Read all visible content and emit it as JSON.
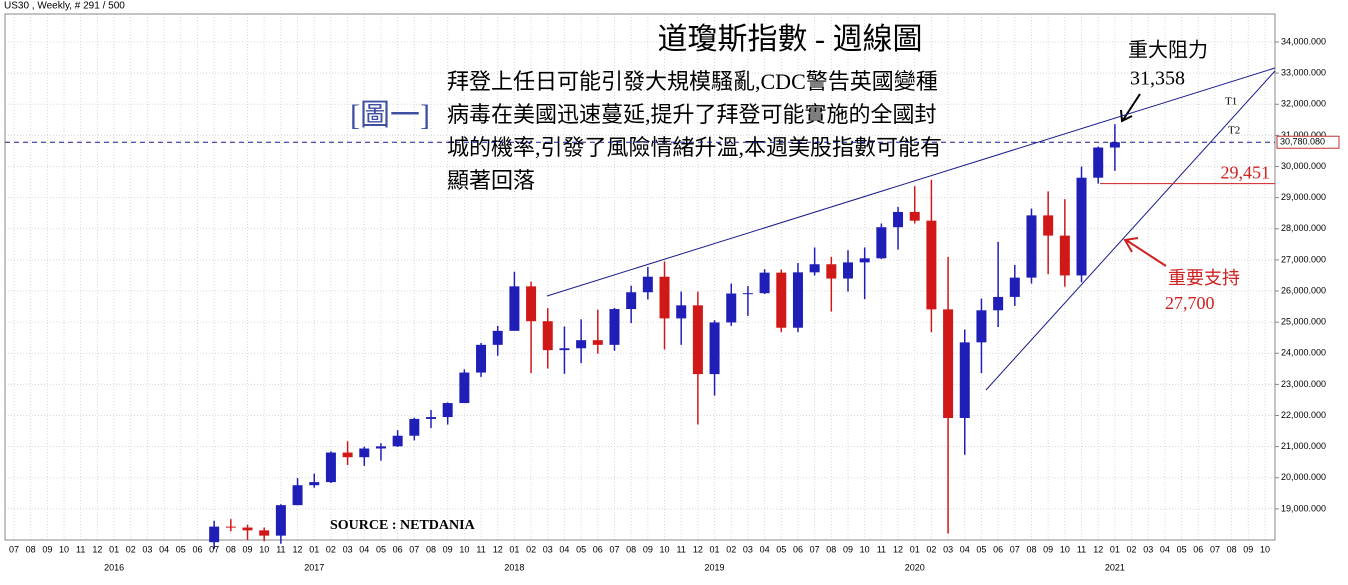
{
  "chart_data": {
    "type": "candlestick",
    "header": "US30 , Weekly, # 291 / 500",
    "title": "道瓊斯指數 - 週線圖",
    "figure_label": "[圖一]",
    "annotation_lines": [
      "拜登上任日可能引發大規模騷亂,CDC警告英國變種",
      "病毒在美國迅速蔓延,提升了拜登可能實施的全國封",
      "城的機率,引發了風險情緒升溫,本週美股指數可能有",
      "顯著回落"
    ],
    "resistance": {
      "title": "重大阻力",
      "value": 31358,
      "label": "31,358"
    },
    "support": {
      "title": "重要支持",
      "value": 27700,
      "label": "27,700"
    },
    "level": {
      "value": 29451,
      "label": "29,451",
      "color": "#d02020"
    },
    "last_price": {
      "value": 30780.08,
      "label": "30,780.080"
    },
    "trendline_names": [
      "T1",
      "T2"
    ],
    "source": "SOURCE : NETDANIA",
    "categories": [
      "07",
      "08",
      "09",
      "10",
      "11",
      "12",
      "01",
      "02",
      "03",
      "04",
      "05",
      "06",
      "07",
      "08",
      "09",
      "10",
      "11",
      "12",
      "01",
      "02",
      "03",
      "04",
      "05",
      "06",
      "07",
      "08",
      "09",
      "10",
      "11",
      "12",
      "01",
      "02",
      "03",
      "04",
      "05",
      "06",
      "07",
      "08",
      "09",
      "10",
      "11",
      "12",
      "01",
      "02",
      "03",
      "04",
      "05",
      "06",
      "07",
      "08",
      "09",
      "10",
      "11",
      "12",
      "01",
      "02",
      "03",
      "04",
      "05",
      "06",
      "07",
      "08",
      "09",
      "10",
      "11",
      "12",
      "01",
      "02",
      "03",
      "04",
      "05",
      "06",
      "07",
      "08",
      "09",
      "10"
    ],
    "years": [
      "2016",
      "2017",
      "2018",
      "2019",
      "2020",
      "2021"
    ],
    "open": [
      null,
      null,
      null,
      null,
      null,
      null,
      null,
      null,
      null,
      null,
      null,
      null,
      17930,
      18430,
      18400,
      18310,
      18140,
      19120,
      19760,
      19860,
      20810,
      20660,
      20940,
      21010,
      21350,
      21890,
      21950,
      22400,
      23380,
      24270,
      24720,
      26150,
      25030,
      24100,
      24160,
      24420,
      24270,
      25420,
      25960,
      26460,
      25120,
      25540,
      23330,
      24990,
      25920,
      25930,
      26590,
      24820,
      26600,
      26860,
      26400,
      26920,
      27050,
      28050,
      28540,
      28260,
      25410,
      21920,
      24350,
      25380,
      25810,
      26430,
      28430,
      27780,
      26500,
      29640,
      30610,
      null,
      null,
      null,
      null,
      null,
      null,
      null,
      null,
      null
    ],
    "high": [
      null,
      null,
      null,
      null,
      null,
      null,
      null,
      null,
      null,
      null,
      null,
      null,
      18620,
      18670,
      18490,
      18400,
      19150,
      19990,
      20130,
      20850,
      21170,
      21000,
      21110,
      21530,
      21930,
      22180,
      22420,
      23480,
      24330,
      24880,
      26620,
      26300,
      25450,
      24860,
      25090,
      25400,
      25460,
      26170,
      26770,
      26950,
      25980,
      25980,
      25060,
      26240,
      26160,
      26700,
      26690,
      26900,
      27400,
      27100,
      27310,
      27400,
      28170,
      28700,
      29370,
      29570,
      27100,
      24760,
      25760,
      27580,
      26840,
      28650,
      29200,
      28950,
      30000,
      30640,
      31360,
      null,
      null,
      null,
      null,
      null,
      null,
      null,
      null,
      null
    ],
    "low": [
      null,
      null,
      null,
      null,
      null,
      null,
      null,
      null,
      null,
      null,
      null,
      null,
      17710,
      18280,
      18000,
      17960,
      17880,
      19120,
      19680,
      19830,
      20410,
      20380,
      20550,
      20990,
      21200,
      21600,
      21710,
      22400,
      23240,
      23920,
      24720,
      23360,
      23510,
      23340,
      23680,
      23990,
      24080,
      24970,
      25730,
      24120,
      24270,
      21710,
      22640,
      24880,
      25200,
      25900,
      24680,
      24680,
      26500,
      25340,
      25980,
      25740,
      27030,
      27330,
      28170,
      24680,
      18210,
      20740,
      23360,
      24840,
      25520,
      26240,
      26540,
      26140,
      26280,
      29450,
      29860,
      null,
      null,
      null,
      null,
      null,
      null,
      null,
      null,
      null
    ],
    "close": [
      null,
      null,
      null,
      null,
      null,
      null,
      null,
      null,
      null,
      null,
      null,
      null,
      18430,
      18400,
      18310,
      18140,
      19120,
      19760,
      19860,
      20810,
      20660,
      20940,
      21010,
      21350,
      21890,
      21950,
      22400,
      23380,
      24270,
      24720,
      26150,
      25030,
      24100,
      24160,
      24420,
      24270,
      25420,
      25960,
      26460,
      25120,
      25540,
      23330,
      24990,
      25920,
      25930,
      26590,
      24820,
      26600,
      26860,
      26400,
      26920,
      27050,
      28050,
      28540,
      28260,
      25410,
      21920,
      24350,
      25380,
      25810,
      26430,
      28430,
      27780,
      26500,
      29640,
      30610,
      30780,
      null,
      null,
      null,
      null,
      null,
      null,
      null,
      null,
      null
    ],
    "up_color": "#1f1fb8",
    "down_color": "#d01818",
    "ylim": [
      18000,
      34900
    ],
    "yticks": [
      {
        "value": 19000,
        "label": "19,000.000"
      },
      {
        "value": 20000,
        "label": "20,000.000"
      },
      {
        "value": 21000,
        "label": "21,000.000"
      },
      {
        "value": 22000,
        "label": "22,000.000"
      },
      {
        "value": 23000,
        "label": "23,000.000"
      },
      {
        "value": 24000,
        "label": "24,000.000"
      },
      {
        "value": 25000,
        "label": "25,000.000"
      },
      {
        "value": 26000,
        "label": "26,000.000"
      },
      {
        "value": 27000,
        "label": "27,000.000"
      },
      {
        "value": 28000,
        "label": "28,000.000"
      },
      {
        "value": 29000,
        "label": "29,000.000"
      },
      {
        "value": 30000,
        "label": "30,000.000"
      },
      {
        "value": 31000,
        "label": "31,000.000"
      },
      {
        "value": 32000,
        "label": "32,000.000"
      },
      {
        "value": 33000,
        "label": "33,000.000"
      },
      {
        "value": 34000,
        "label": "34,000.000"
      }
    ],
    "grid": true
  }
}
